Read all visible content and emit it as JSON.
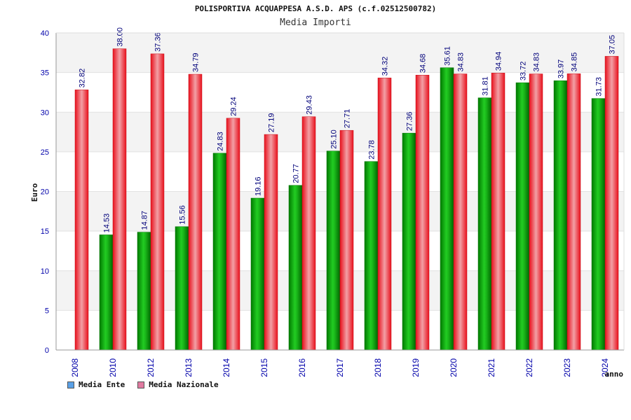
{
  "chart_data": {
    "type": "bar",
    "title": "POLISPORTIVA ACQUAPPESA A.S.D. APS (c.f.02512500782)",
    "subtitle": "Media Importi",
    "xlabel": "anno",
    "ylabel": "Euro",
    "ylim": [
      0,
      40
    ],
    "yticks": [
      "0",
      "5",
      "10",
      "15",
      "20",
      "25",
      "30",
      "35",
      "40"
    ],
    "categories": [
      "2008",
      "2010",
      "2012",
      "2013",
      "2014",
      "2015",
      "2016",
      "2017",
      "2018",
      "2019",
      "2020",
      "2021",
      "2022",
      "2023",
      "2024"
    ],
    "series": [
      {
        "name": "Media Ente",
        "color": "#00a000",
        "values": [
          null,
          14.53,
          14.87,
          15.56,
          24.83,
          19.16,
          20.77,
          25.1,
          23.78,
          27.36,
          35.61,
          31.81,
          33.72,
          33.97,
          31.73
        ],
        "labels": [
          "",
          "14.53",
          "14.87",
          "15.56",
          "24.83",
          "19.16",
          "20.77",
          "25.10",
          "23.78",
          "27.36",
          "35.61",
          "31.81",
          "33.72",
          "33.97",
          "31.73"
        ]
      },
      {
        "name": "Media Nazionale",
        "color": "#e8202a",
        "values": [
          32.82,
          38.0,
          37.36,
          34.79,
          29.24,
          27.19,
          29.43,
          27.71,
          34.32,
          34.68,
          34.83,
          34.94,
          34.83,
          34.85,
          37.05
        ],
        "labels": [
          "32.82",
          "38.00",
          "37.36",
          "34.79",
          "29.24",
          "27.19",
          "29.43",
          "27.71",
          "34.32",
          "34.68",
          "34.83",
          "34.94",
          "34.83",
          "34.85",
          "37.05"
        ]
      }
    ],
    "legend_position": "bottom-left",
    "grid": true
  },
  "legend": {
    "ente_label": "Media Ente",
    "ente_color": "#5aa0e6",
    "naz_label": "Media Nazionale",
    "naz_color": "#e07aa0"
  }
}
